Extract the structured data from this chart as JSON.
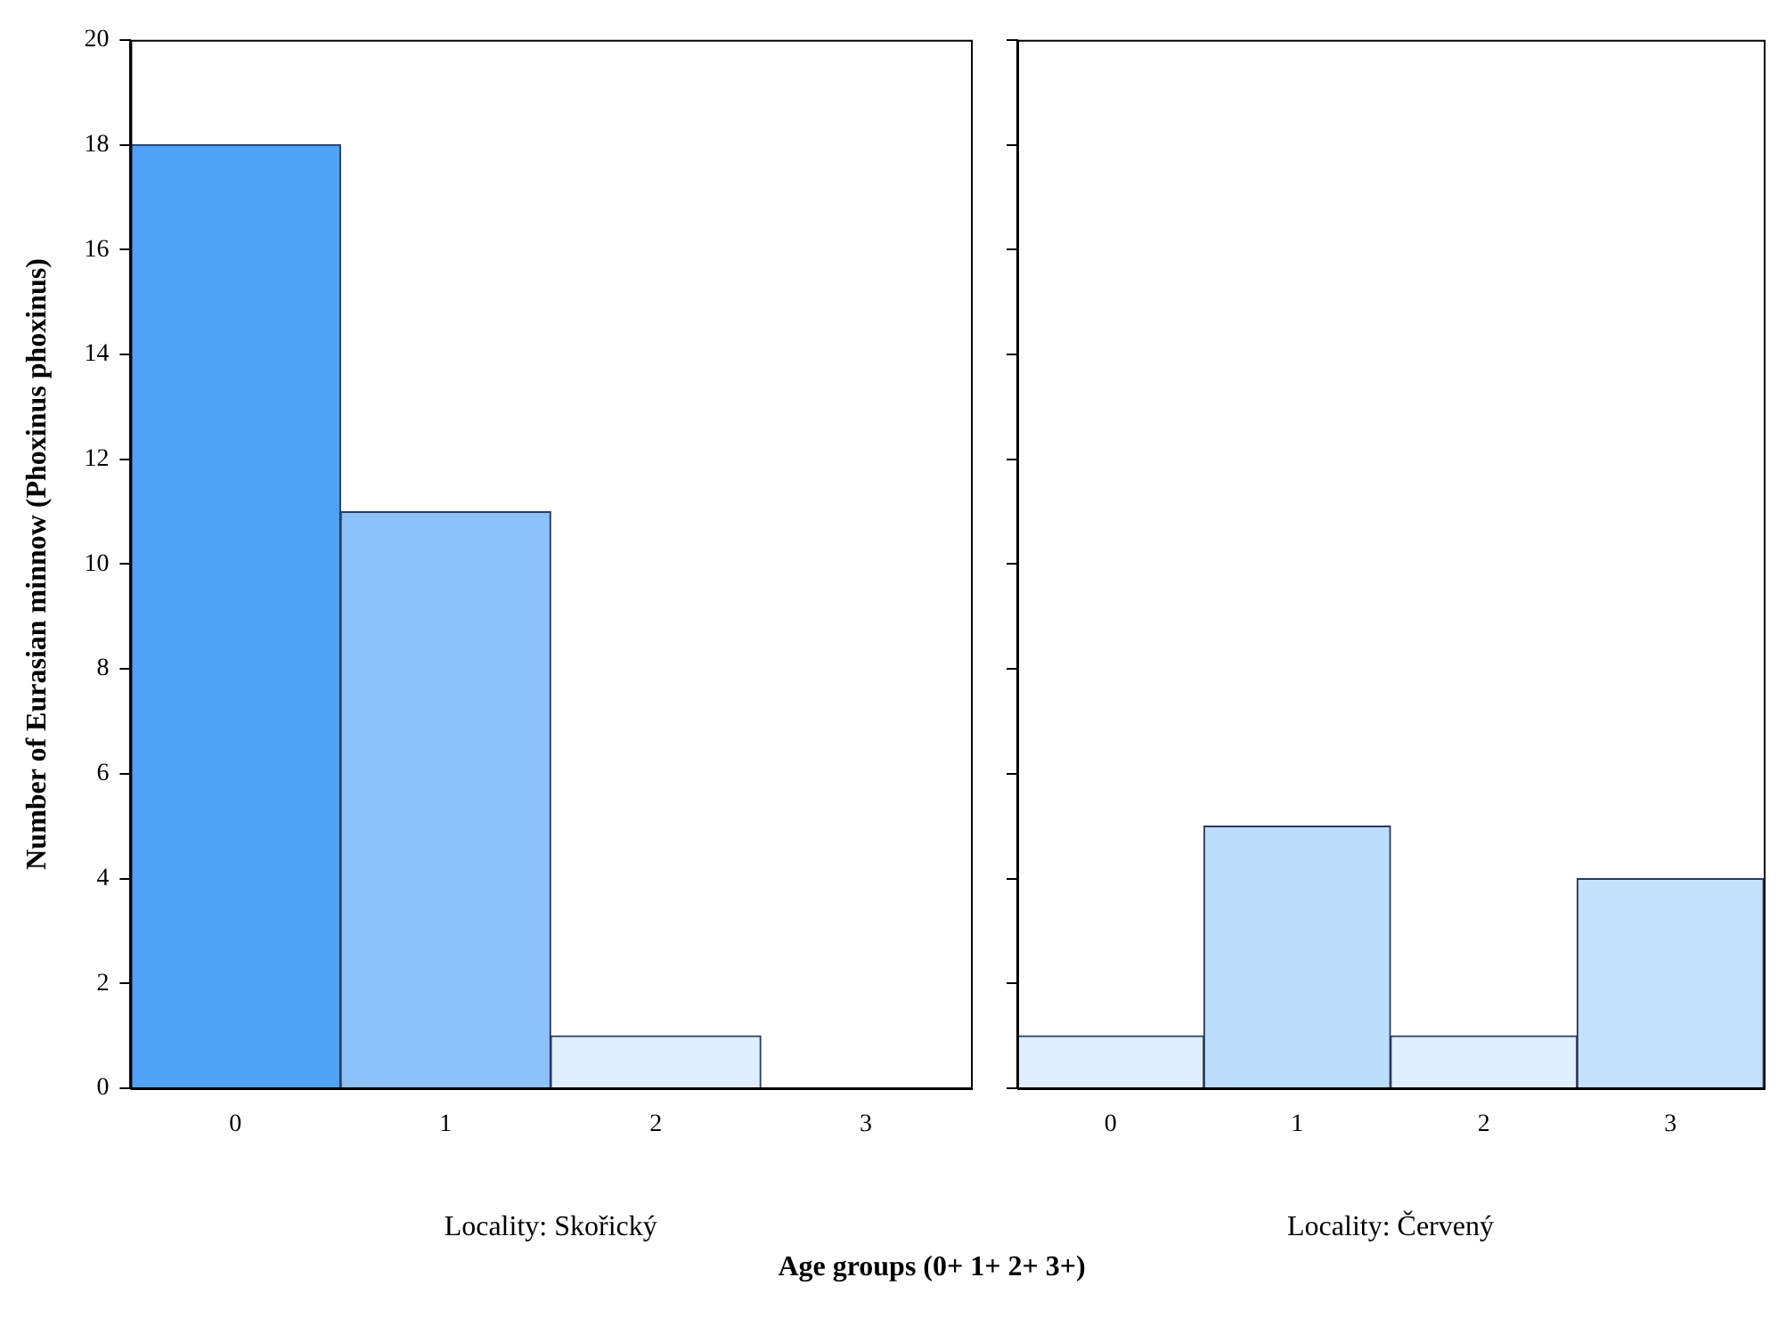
{
  "chart_data": [
    {
      "type": "bar",
      "categories": [
        "0",
        "1",
        "2",
        "3"
      ],
      "values": [
        18,
        11,
        1,
        0
      ],
      "colors": [
        "#4fa2f6",
        "#8cc2f9",
        "#dfeefd",
        "#dfeefd"
      ],
      "ylim": [
        0,
        20
      ],
      "yticks": [
        0,
        2,
        4,
        6,
        8,
        10,
        12,
        14,
        16,
        18,
        20
      ],
      "xlabel": "Locality: Skořický",
      "ylabel": "Number of Eurasian minnow (Phoxinus phoxinus)",
      "grid": false,
      "legend": false,
      "annotations": [
        "Age groups (0+ 1+ 2+ 3+)"
      ]
    },
    {
      "type": "bar",
      "categories": [
        "0",
        "1",
        "2",
        "3"
      ],
      "values": [
        1,
        5,
        1,
        4
      ],
      "colors": [
        "#dfeefd",
        "#bcdcfb",
        "#dfeefd",
        "#c4e0fb"
      ],
      "ylim": [
        0,
        20
      ],
      "yticks": [
        0,
        2,
        4,
        6,
        8,
        10,
        12,
        14,
        16,
        18,
        20
      ],
      "xlabel": "Locality: Červený",
      "grid": false,
      "legend": false,
      "tick_labels": "x"
    }
  ]
}
